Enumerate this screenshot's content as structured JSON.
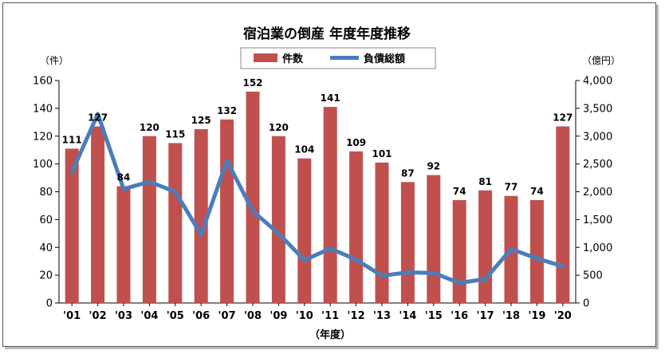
{
  "chart_data": {
    "type": "bar+line",
    "title": "宿泊業の倒産 年度年度推移",
    "xlabel": "（年度）",
    "ylabel_left": "（件）",
    "ylabel_right": "（億円）",
    "categories": [
      "'01",
      "'02",
      "'03",
      "'04",
      "'05",
      "'06",
      "'07",
      "'08",
      "'09",
      "'10",
      "'11",
      "'12",
      "'13",
      "'14",
      "'15",
      "'16",
      "'17",
      "'18",
      "'19",
      "'20"
    ],
    "yticks_left": [
      "0",
      "20",
      "40",
      "60",
      "80",
      "100",
      "120",
      "140",
      "160"
    ],
    "yticks_right": [
      "0",
      "500",
      "1,000",
      "1,500",
      "2,000",
      "2,500",
      "3,000",
      "3,500",
      "4,000"
    ],
    "ylim_left": [
      0,
      160
    ],
    "ylim_right": [
      0,
      4000
    ],
    "series": [
      {
        "name": "件数",
        "type": "bar",
        "axis": "left",
        "color": "#c0504d",
        "values": [
          111,
          127,
          84,
          120,
          115,
          125,
          132,
          152,
          120,
          104,
          141,
          109,
          101,
          87,
          92,
          74,
          81,
          77,
          74,
          127
        ],
        "labels": [
          "111",
          "127",
          "84",
          "120",
          "115",
          "125",
          "132",
          "152",
          "120",
          "104",
          "141",
          "109",
          "101",
          "87",
          "92",
          "74",
          "81",
          "77",
          "74",
          "127"
        ]
      },
      {
        "name": "負債総額",
        "type": "line",
        "axis": "right",
        "color": "#4a7ebb",
        "values": [
          2350,
          3400,
          2050,
          2180,
          2000,
          1230,
          2560,
          1650,
          1250,
          770,
          980,
          780,
          490,
          550,
          540,
          360,
          430,
          970,
          800,
          660
        ]
      }
    ],
    "legend_position": "top-center",
    "grid": false
  }
}
